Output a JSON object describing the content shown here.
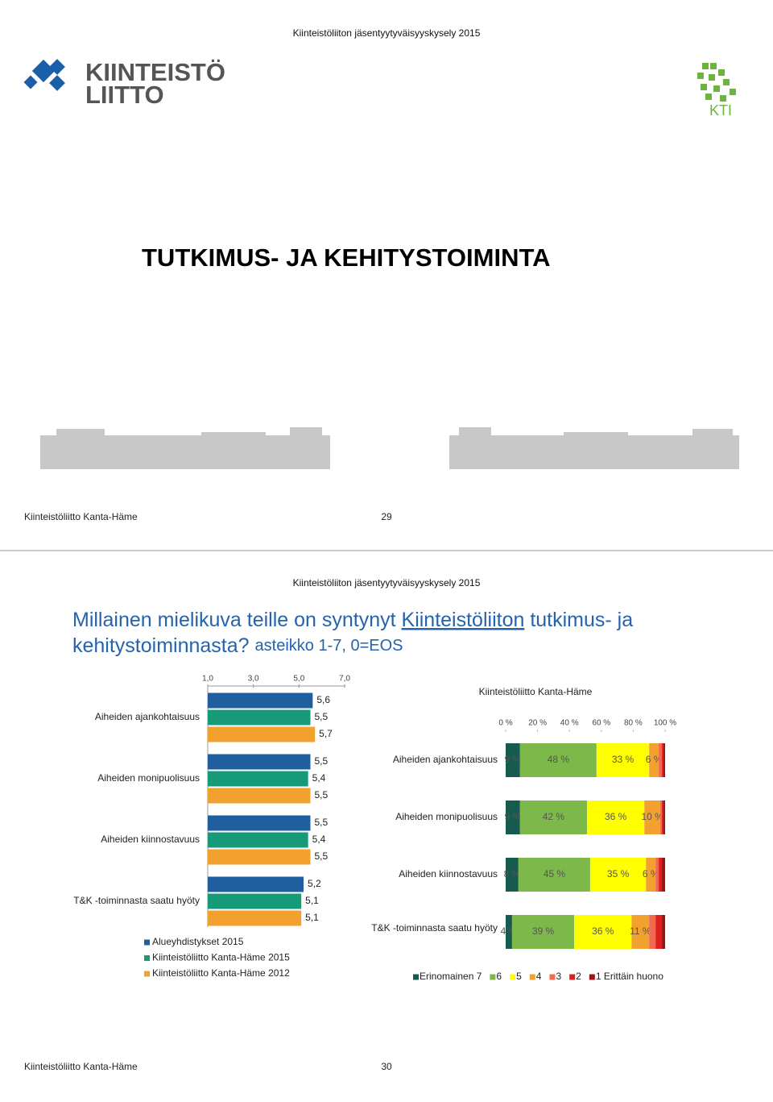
{
  "header": {
    "logo_line1": "KIINTEISTÖ",
    "logo_line2": "LIITTO",
    "kti_logo": "KTI"
  },
  "slides": [
    {
      "header": "Kiinteistöliiton jäsentyytyväisyyskysely 2015",
      "title": "TUTKIMUS- JA KEHITYSTOIMINTA",
      "footer": "Kiinteistöliitto Kanta-Häme",
      "page": "29"
    },
    {
      "header": "Kiinteistöliiton jäsentyytyväisyyskysely 2015",
      "title_parts": [
        "Millainen mielikuva teille on syntynyt",
        "Kiinteistöliiton",
        "tutkimus- ja",
        "kehitystoiminnasta?"
      ],
      "subtitle": "asteikko 1-7, 0=EOS",
      "footer": "Kiinteistöliitto Kanta-Häme",
      "page": "30"
    }
  ],
  "chart_data": [
    {
      "type": "bar",
      "orientation": "horizontal",
      "categories": [
        "Aiheiden ajankohtaisuus",
        "Aiheiden monipuolisuus",
        "Aiheiden kiinnostavuus",
        "T&K -toiminnasta saatu hyöty"
      ],
      "series": [
        {
          "name": "Alueyhdistykset 2015",
          "color": "#1f5f9f",
          "values": [
            5.6,
            5.5,
            5.5,
            5.2
          ],
          "value_labels": [
            "5,6",
            "5,5",
            "5,5",
            "5,2"
          ]
        },
        {
          "name": "Kiinteistöliitto Kanta-Häme 2015",
          "color": "#179a78",
          "values": [
            5.5,
            5.4,
            5.4,
            5.1
          ],
          "value_labels": [
            "5,5",
            "5,4",
            "5,4",
            "5,1"
          ]
        },
        {
          "name": "Kiinteistöliitto Kanta-Häme 2012",
          "color": "#f2a12e",
          "values": [
            5.7,
            5.5,
            5.5,
            5.1
          ],
          "value_labels": [
            "5,7",
            "5,5",
            "5,5",
            "5,1"
          ]
        }
      ],
      "xlim": [
        1,
        7
      ],
      "xticks": [
        {
          "value": 1,
          "label": "1,0"
        },
        {
          "value": 3,
          "label": "3,0"
        },
        {
          "value": 5,
          "label": "5,0"
        },
        {
          "value": 7,
          "label": "7,0"
        }
      ],
      "legend": "bottom-left"
    },
    {
      "type": "stacked_bar",
      "orientation": "horizontal",
      "title": "Kiinteistöliitto Kanta-Häme",
      "categories": [
        "Aiheiden ajankohtaisuus",
        "Aiheiden monipuolisuus",
        "Aiheiden kiinnostavuus",
        "T&K -toiminnasta saatu hyöty"
      ],
      "series": [
        {
          "name": "Erinomainen 7",
          "color": "#175a50",
          "values": [
            9,
            9,
            8,
            4
          ],
          "value_labels": [
            "9 %",
            "9 %",
            "8 %",
            "4 %"
          ]
        },
        {
          "name": "6",
          "color": "#7cb84a",
          "values": [
            48,
            42,
            45,
            39
          ],
          "value_labels": [
            "48 %",
            "42 %",
            "45 %",
            "39 %"
          ]
        },
        {
          "name": "5",
          "color": "#ffff00",
          "values": [
            33,
            36,
            35,
            36
          ],
          "value_labels": [
            "33 %",
            "36 %",
            "35 %",
            "36 %"
          ]
        },
        {
          "name": "4",
          "color": "#f2a12e",
          "values": [
            6,
            10,
            6,
            11
          ],
          "value_labels": [
            "6 %",
            "10 %",
            "6 %",
            "11 %"
          ]
        },
        {
          "name": "3",
          "color": "#f06a4e",
          "values": [
            2,
            1,
            2,
            4
          ]
        },
        {
          "name": "2",
          "color": "#e01e1e",
          "values": [
            1,
            1,
            2,
            4
          ]
        },
        {
          "name": "1 Erittäin huono",
          "color": "#9e1414",
          "values": [
            1,
            1,
            2,
            2
          ]
        }
      ],
      "xlim": [
        0,
        100
      ],
      "xticks": [
        {
          "value": 0,
          "label": "0 %"
        },
        {
          "value": 20,
          "label": "20 %"
        },
        {
          "value": 40,
          "label": "40 %"
        },
        {
          "value": 60,
          "label": "60 %"
        },
        {
          "value": 80,
          "label": "80 %"
        },
        {
          "value": 100,
          "label": "100 %"
        }
      ],
      "legend": "bottom"
    }
  ]
}
